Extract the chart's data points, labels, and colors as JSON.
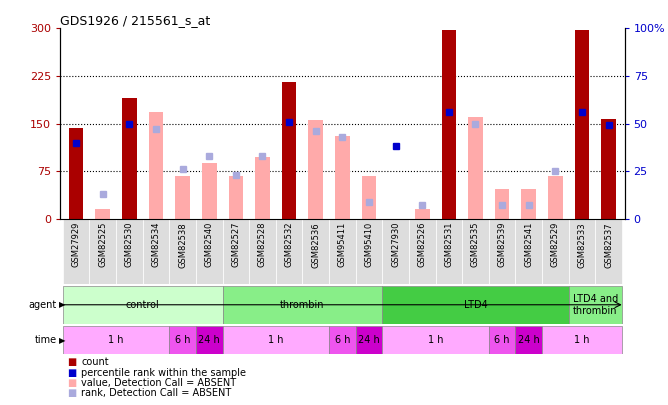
{
  "title": "GDS1926 / 215561_s_at",
  "samples": [
    "GSM27929",
    "GSM82525",
    "GSM82530",
    "GSM82534",
    "GSM82538",
    "GSM82540",
    "GSM82527",
    "GSM82528",
    "GSM82532",
    "GSM82536",
    "GSM95411",
    "GSM95410",
    "GSM27930",
    "GSM82526",
    "GSM82531",
    "GSM82535",
    "GSM82539",
    "GSM82541",
    "GSM82529",
    "GSM82533",
    "GSM82537"
  ],
  "count_present": [
    143,
    null,
    190,
    null,
    null,
    null,
    null,
    null,
    215,
    null,
    null,
    null,
    null,
    null,
    297,
    null,
    null,
    null,
    null,
    297,
    157
  ],
  "rank_present_pct": [
    40,
    null,
    50,
    null,
    null,
    null,
    null,
    null,
    51,
    null,
    null,
    null,
    38,
    null,
    56,
    null,
    null,
    null,
    null,
    56,
    49
  ],
  "count_absent": [
    null,
    15,
    null,
    168,
    67,
    87,
    67,
    97,
    null,
    155,
    130,
    67,
    null,
    15,
    null,
    160,
    47,
    47,
    67,
    null,
    null
  ],
  "rank_absent_pct": [
    null,
    13,
    null,
    47,
    26,
    33,
    23,
    33,
    null,
    46,
    43,
    9,
    null,
    7,
    null,
    50,
    7,
    7,
    25,
    null,
    null
  ],
  "ylim_left": [
    0,
    300
  ],
  "ylim_right": [
    0,
    100
  ],
  "yticks_left": [
    0,
    75,
    150,
    225,
    300
  ],
  "yticks_right": [
    0,
    25,
    50,
    75,
    100
  ],
  "ytick_labels_left": [
    "0",
    "75",
    "150",
    "225",
    "300"
  ],
  "ytick_labels_right": [
    "0",
    "25",
    "50",
    "75",
    "100%"
  ],
  "color_count_present": "#aa0000",
  "color_rank_present": "#0000cc",
  "color_count_absent": "#ffaaaa",
  "color_rank_absent": "#aaaadd",
  "agents": [
    {
      "label": "control",
      "start": 0,
      "end": 5,
      "color": "#ccffcc"
    },
    {
      "label": "thrombin",
      "start": 6,
      "end": 11,
      "color": "#88ee88"
    },
    {
      "label": "LTD4",
      "start": 12,
      "end": 18,
      "color": "#44cc44"
    },
    {
      "label": "LTD4 and\nthrombin",
      "start": 19,
      "end": 20,
      "color": "#88ee88"
    }
  ],
  "times": [
    {
      "label": "1 h",
      "start": 0,
      "end": 3,
      "color": "#ffaaff"
    },
    {
      "label": "6 h",
      "start": 4,
      "end": 4,
      "color": "#ee55ee"
    },
    {
      "label": "24 h",
      "start": 5,
      "end": 5,
      "color": "#cc00cc"
    },
    {
      "label": "1 h",
      "start": 6,
      "end": 9,
      "color": "#ffaaff"
    },
    {
      "label": "6 h",
      "start": 10,
      "end": 10,
      "color": "#ee55ee"
    },
    {
      "label": "24 h",
      "start": 11,
      "end": 11,
      "color": "#cc00cc"
    },
    {
      "label": "1 h",
      "start": 12,
      "end": 15,
      "color": "#ffaaff"
    },
    {
      "label": "6 h",
      "start": 16,
      "end": 16,
      "color": "#ee55ee"
    },
    {
      "label": "24 h",
      "start": 17,
      "end": 17,
      "color": "#cc00cc"
    },
    {
      "label": "1 h",
      "start": 18,
      "end": 20,
      "color": "#ffaaff"
    }
  ],
  "bar_width": 0.55,
  "background_color": "#ffffff"
}
